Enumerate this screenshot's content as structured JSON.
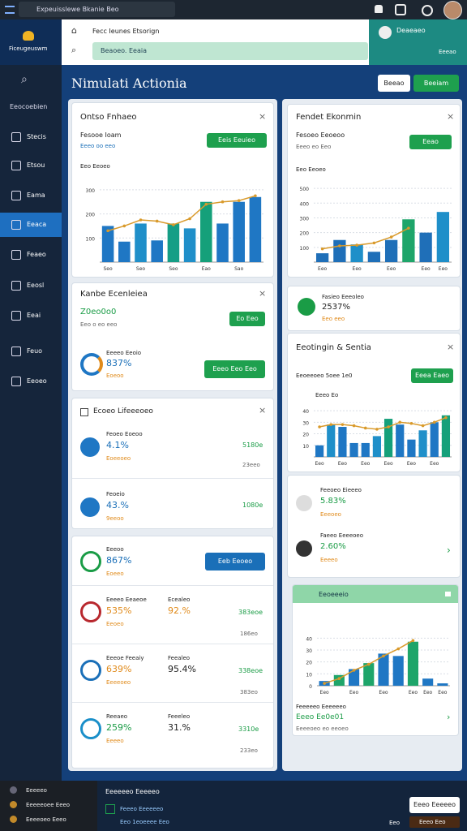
{
  "topbar": {
    "search": "Expeuisslewe Bkanie Beo"
  },
  "header": {
    "brand": "Ficeugeuswm",
    "address": "Fecc Ieunes Etsorign",
    "search": "Beaoeo. Eeaia",
    "profile": "Deaeaeo",
    "profile_sub": "Eeeao"
  },
  "sidebar": {
    "heading": "Eeocoebien",
    "items": [
      "Stecis",
      "Etsou",
      "Eama",
      "Eeaca",
      "Feaeo",
      "Eeosl",
      "Eeai",
      "Feuo",
      "Eeoeo"
    ]
  },
  "main": {
    "title": "Nimulati Actionia",
    "buttons": [
      "Beeao",
      "Beeiam"
    ]
  },
  "left": {
    "overview": {
      "title": "Ontso Fnhaeo",
      "subtitle": "Fesooe Ioam",
      "note": "Eeeo oo eeo",
      "button": "Eeis Eeuieo",
      "chart_label": "Eeo Eeoeo",
      "chart": {
        "ylim": [
          0,
          350
        ],
        "yticks": [
          100,
          200,
          300
        ],
        "categories": [
          "Seo",
          null,
          "Seo",
          null,
          "Seo",
          null,
          "Eao",
          null,
          "Sao",
          null
        ],
        "bars": [
          150,
          85,
          160,
          90,
          160,
          140,
          250,
          160,
          250,
          270
        ],
        "line": [
          130,
          150,
          175,
          170,
          155,
          180,
          240,
          250,
          255,
          275
        ],
        "colors": [
          "#1f77c4",
          "#1f77c4",
          "#1f8fc9",
          "#1f77c4",
          "#159e86",
          "#1f8fc9",
          "#15a07a",
          "#1f77c4",
          "#1f77c4",
          "#1f77c4"
        ],
        "line_color": "#d99a2b"
      }
    },
    "summary": {
      "title": "Kanbe Ecenleiea",
      "value": "Z0eo0o0",
      "note": "Eeo o eo eeo",
      "button": "Eo Eeo",
      "metric_label": "Eeeeo Eeoio",
      "metric_value": "837%",
      "metric_note": "Eoeoo",
      "metric_button": "Eeeo Eeo Eeo"
    },
    "list": {
      "title": "Ecoeo Lifeeeoeo",
      "rows": [
        {
          "label": "Feoeo Eoeoo",
          "value": "4.1%",
          "note": "Eoeeoeo",
          "amount": "5180e",
          "sub": "23eeo"
        },
        {
          "label": "Feoeio",
          "value": "43.%",
          "note": "9eeoo",
          "amount": "1080e"
        }
      ]
    },
    "detail": {
      "rows": [
        {
          "label": "Eeeoo",
          "value": "867%",
          "note": "Eoeeo",
          "button": "Eeb Eeoeo"
        },
        {
          "label": "Eeeeo Eeaeoe",
          "value": "535%",
          "note": "Eeoeo",
          "mid_label": "Ecealeo",
          "mid_value": "92.%",
          "amount": "383eoe",
          "sub": "186eo"
        },
        {
          "label": "Eeeoe Feeaiy",
          "value": "639%",
          "note": "Eeeeoeo",
          "mid_label": "Feealeo",
          "mid_value": "95.4%",
          "amount": "338eoe",
          "sub": "383eo"
        },
        {
          "label": "Reeaeo",
          "value": "259%",
          "note": "Eeeeo",
          "mid_label": "Feeeleo",
          "mid_value": "31.%",
          "amount": "3310e",
          "sub": "233eo"
        }
      ]
    }
  },
  "right": {
    "trend": {
      "title": "Fendet Ekonmin",
      "subtitle": "Fesoeo Eeoeoo",
      "note": "Eeeo eo Eeo",
      "button": "Eeao",
      "chart_label": "Eeo Eeoeo",
      "chart": {
        "ylim": [
          0,
          550
        ],
        "yticks": [
          100,
          200,
          300,
          400,
          500
        ],
        "categories": [
          "Eeo",
          null,
          "Eeo",
          null,
          "Eeo",
          null,
          "Eeo",
          "Eeo"
        ],
        "bars": [
          60,
          150,
          120,
          70,
          150,
          290,
          200,
          340
        ],
        "line": [
          90,
          110,
          115,
          130,
          170,
          230,
          null,
          null
        ],
        "colors": [
          "#1f6fb8",
          "#1f6fb8",
          "#1f8fc9",
          "#1f6fb8",
          "#1f6fb8",
          "#1ea56a",
          "#1f6fb8",
          "#1f8fc9"
        ],
        "line_color": "#d99a2b"
      }
    },
    "metric": {
      "label": "Fasieo Eeeoleo",
      "value": "2537%",
      "note": "Eeo eeo"
    },
    "sentiment": {
      "title": "Eeotingin & Sentia",
      "subtitle": "Eeoeeoeo 5oee 1e0",
      "button": "Eeea Eaeo",
      "chart_label": "Eeeo Eo",
      "chart": {
        "ylim": [
          0,
          45
        ],
        "yticks": [
          10,
          20,
          30,
          40
        ],
        "categories": [
          "Eeo",
          null,
          "Eeo",
          null,
          "Eeo",
          null,
          "Eeo",
          null,
          "Eeo",
          null,
          "Eeo",
          null
        ],
        "bars": [
          10,
          28,
          26,
          12,
          12,
          18,
          33,
          28,
          15,
          23,
          30,
          36
        ],
        "line": [
          26,
          28,
          28,
          27,
          25,
          24,
          26,
          30,
          29,
          27,
          30,
          34
        ],
        "colors": [
          "#1f77c4",
          "#1f8fc9",
          "#1f77c4",
          "#1f77c4",
          "#1f77c4",
          "#1f8fc9",
          "#15a07a",
          "#1f77c4",
          "#1f77c4",
          "#1f8fc9",
          "#1f77c4",
          "#15a07a"
        ],
        "line_color": "#d99a2b"
      }
    },
    "people": [
      {
        "label": "Feeoeo Eieeeo",
        "value": "5.83%",
        "note": "Eeeoeo"
      },
      {
        "label": "Faeeo Eeeeoeo",
        "value": "2.60%",
        "note": "Eeeeo"
      }
    ],
    "growth": {
      "title": "Eeoeeeio",
      "footer": "Feeeeeo Eeeeeeo",
      "value": "Eeeo Ee0e01",
      "note": "Eeeeoeo eo eeoeo",
      "chart": {
        "ylim": [
          0,
          45
        ],
        "yticks": [
          0,
          10,
          20,
          30,
          40
        ],
        "categories": [
          "Eeo",
          null,
          "Eeo",
          null,
          "Eeo",
          null,
          "Eeo",
          "Eeo",
          "Eeo"
        ],
        "bars": [
          4,
          9,
          14,
          19,
          27,
          25,
          37,
          6,
          2
        ],
        "line": [
          2,
          6,
          13,
          18,
          25,
          31,
          38,
          null,
          null
        ],
        "colors": [
          "#1f77c4",
          "#1ea56a",
          "#1f77c4",
          "#1ea56a",
          "#1f77c4",
          "#1f77c4",
          "#1ea56a",
          "#1f77c4",
          "#1f77c4"
        ],
        "line_color": "#d99a2b"
      }
    }
  },
  "bottombar": {
    "items": [
      "Eeeeeo",
      "Eeeeeoee Eeeo",
      "Eeeeoeo Eeeo"
    ],
    "title": "Eeeeeeo Eeeeeo",
    "lines": [
      "Feeeo Eeeeeeo",
      "Eeo 1eoeeee Eeo"
    ],
    "button": "Eeeo Eeeeeo",
    "status": "Eeo",
    "badge": "Eeeo Eeo"
  }
}
